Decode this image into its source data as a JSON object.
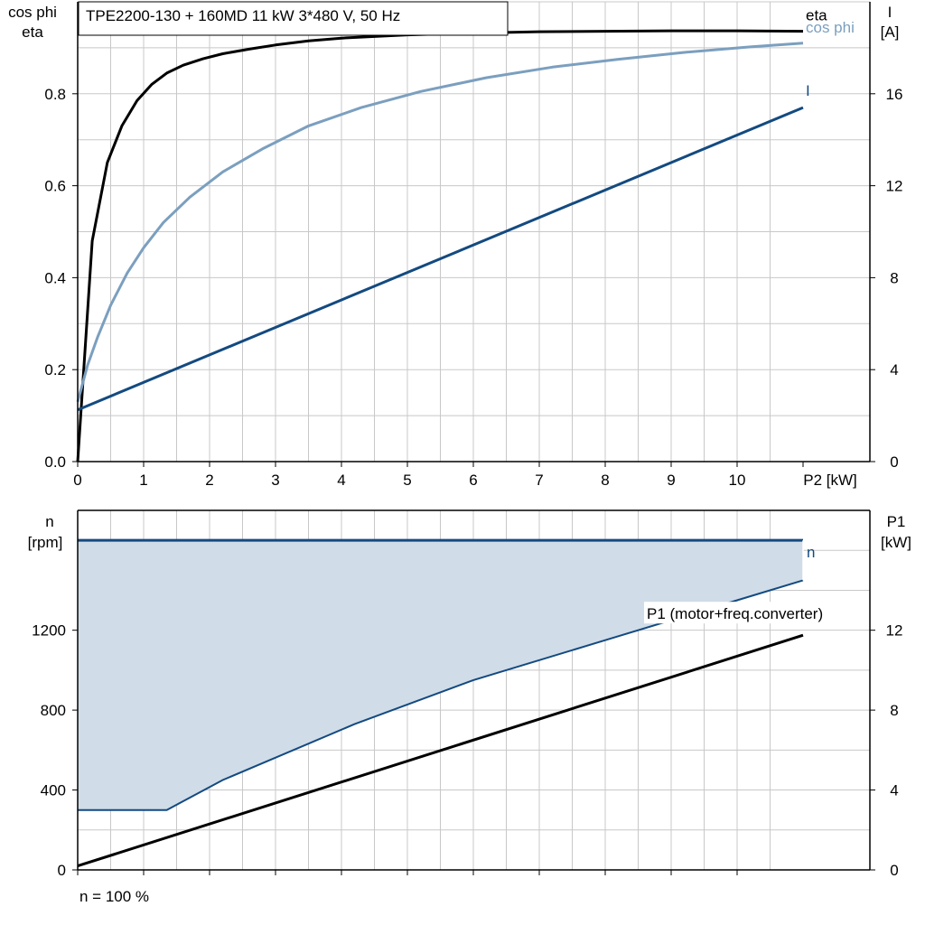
{
  "title": "TPE2200-130 + 160MD   11 kW   3*480 V, 50 Hz",
  "colors": {
    "eta": "#000000",
    "cos_phi": "#7b9fbf",
    "current": "#134a80",
    "speed": "#134a80",
    "speed_fill": "#d0dce8",
    "p1": "#000000",
    "grid": "#c8c8c8",
    "axis": "#000000"
  },
  "footer_note": "n = 100 %",
  "chart_data": [
    {
      "type": "line",
      "name": "top",
      "x": {
        "label": "P2 [kW]",
        "range": [
          0,
          11
        ],
        "ticks": [
          0,
          1,
          2,
          3,
          4,
          5,
          6,
          7,
          8,
          9,
          10
        ],
        "tick_labels": [
          "0",
          "1",
          "2",
          "3",
          "4",
          "5",
          "6",
          "7",
          "8",
          "9",
          "10"
        ]
      },
      "y_left": {
        "label_line1": "cos phi",
        "label_line2": "eta",
        "range": [
          0,
          1.0
        ],
        "ticks": [
          0.0,
          0.2,
          0.4,
          0.6,
          0.8
        ],
        "tick_labels": [
          "0.0",
          "0.2",
          "0.4",
          "0.6",
          "0.8"
        ]
      },
      "y_right": {
        "label_line1": "I",
        "label_line2": "[A]",
        "range": [
          0,
          20
        ],
        "ticks": [
          0,
          4,
          8,
          12,
          16
        ],
        "tick_labels": [
          "0",
          "4",
          "8",
          "12",
          "16"
        ]
      },
      "grid": true,
      "series": [
        {
          "name": "eta",
          "axis": "left",
          "x": [
            0,
            0.22,
            0.45,
            0.67,
            0.9,
            1.12,
            1.35,
            1.6,
            1.9,
            2.2,
            2.6,
            3.0,
            3.5,
            4.0,
            5.0,
            6.0,
            7.0,
            8.0,
            9.0,
            10.0,
            11.0
          ],
          "y": [
            0.0,
            0.48,
            0.65,
            0.73,
            0.785,
            0.82,
            0.845,
            0.862,
            0.876,
            0.887,
            0.897,
            0.906,
            0.915,
            0.921,
            0.928,
            0.932,
            0.935,
            0.936,
            0.937,
            0.937,
            0.936
          ]
        },
        {
          "name": "cos phi",
          "axis": "left",
          "x": [
            0,
            0.15,
            0.3,
            0.5,
            0.75,
            1.0,
            1.3,
            1.7,
            2.2,
            2.8,
            3.5,
            4.3,
            5.2,
            6.2,
            7.2,
            8.2,
            9.2,
            10.2,
            11.0
          ],
          "y": [
            0.13,
            0.21,
            0.27,
            0.34,
            0.41,
            0.465,
            0.52,
            0.575,
            0.63,
            0.68,
            0.73,
            0.77,
            0.805,
            0.835,
            0.858,
            0.875,
            0.89,
            0.902,
            0.91
          ]
        },
        {
          "name": "I",
          "axis": "right",
          "x": [
            0,
            11.0
          ],
          "y": [
            2.25,
            15.4
          ]
        }
      ]
    },
    {
      "type": "line",
      "name": "bottom",
      "x": {
        "range": [
          0,
          11
        ],
        "ticks": [
          0,
          1,
          2,
          3,
          4,
          5,
          6,
          7,
          8,
          9,
          10
        ]
      },
      "y_left": {
        "label_line1": "n",
        "label_line2": "[rpm]",
        "range": [
          0,
          1800
        ],
        "ticks": [
          0,
          400,
          800,
          1200
        ],
        "tick_labels": [
          "0",
          "400",
          "800",
          "1200"
        ]
      },
      "y_right": {
        "label_line1": "P1",
        "label_line2": "[kW]",
        "range": [
          0,
          18
        ],
        "ticks": [
          0,
          4,
          8,
          12
        ],
        "tick_labels": [
          "0",
          "4",
          "8",
          "12"
        ]
      },
      "grid": true,
      "speed_range": {
        "name": "n",
        "axis": "left",
        "max_line": {
          "x": [
            0,
            11.0
          ],
          "y": [
            1650,
            1650
          ]
        },
        "min_line": {
          "x": [
            0,
            1.35,
            2.2,
            4.2,
            6.0,
            8.0,
            10.0,
            11.0
          ],
          "y": [
            300,
            300,
            450,
            730,
            950,
            1150,
            1350,
            1450
          ]
        }
      },
      "series": [
        {
          "name": "P1 (motor+freq.converter)",
          "axis": "right",
          "x": [
            0,
            11.0
          ],
          "y": [
            0.2,
            11.75
          ]
        }
      ]
    }
  ]
}
